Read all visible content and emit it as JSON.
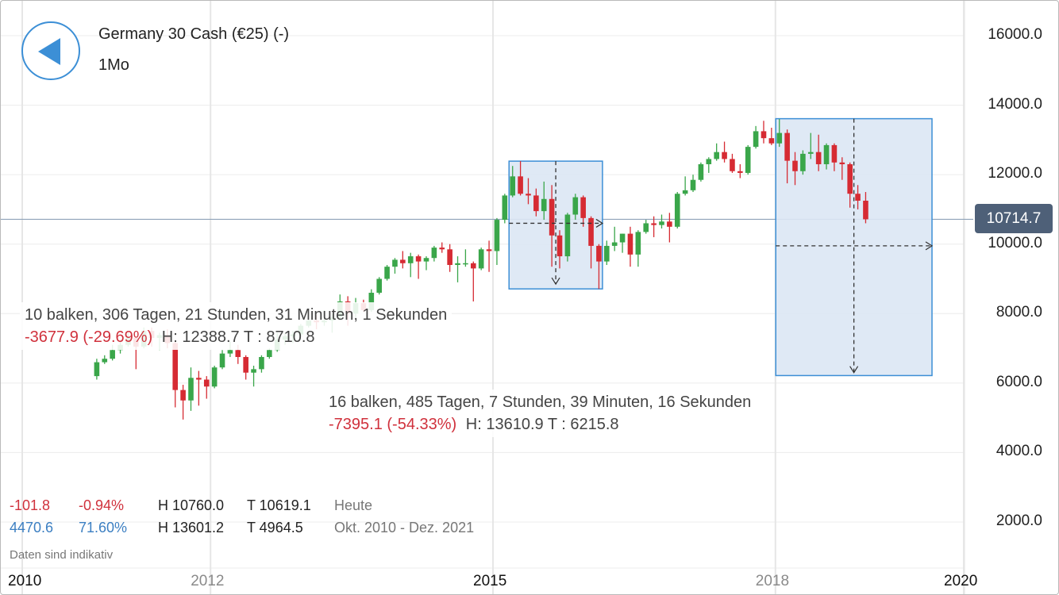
{
  "header": {
    "back_icon": "back-arrow-icon",
    "title": "Germany 30 Cash (€25) (-)",
    "interval": "1Mo"
  },
  "colors": {
    "up": "#3aa64a",
    "down": "#d62b33",
    "accent": "#3c8fd6",
    "price_box": "#4e6078",
    "selection_fill": "#dbe7f4"
  },
  "chart_data": {
    "type": "candlestick",
    "ylim": [
      1500,
      16600
    ],
    "y_ticks": [
      "16000.0",
      "14000.0",
      "12000.0",
      "10000.0",
      "8000.0",
      "6000.0",
      "4000.0",
      "2000.0"
    ],
    "x_ticks": [
      {
        "label": "2010",
        "year": 2010,
        "emphasis": true
      },
      {
        "label": "2012",
        "year": 2012,
        "emphasis": false
      },
      {
        "label": "2015",
        "year": 2015,
        "emphasis": true
      },
      {
        "label": "2018",
        "year": 2018,
        "emphasis": false
      },
      {
        "label": "2020",
        "year": 2020,
        "emphasis": true
      }
    ],
    "current_price": "10714.7",
    "current_value": 10714.7,
    "candles": [
      {
        "t": "2010-10",
        "o": 6200,
        "h": 6700,
        "l": 6100,
        "c": 6600
      },
      {
        "t": "2010-11",
        "o": 6600,
        "h": 6800,
        "l": 6550,
        "c": 6700
      },
      {
        "t": "2010-12",
        "o": 6700,
        "h": 7100,
        "l": 6650,
        "c": 6950
      },
      {
        "t": "2011-01",
        "o": 6950,
        "h": 7200,
        "l": 6850,
        "c": 7100
      },
      {
        "t": "2011-02",
        "o": 7100,
        "h": 7450,
        "l": 7050,
        "c": 7300
      },
      {
        "t": "2011-03",
        "o": 7300,
        "h": 7350,
        "l": 6400,
        "c": 7050
      },
      {
        "t": "2011-04",
        "o": 7050,
        "h": 7600,
        "l": 7000,
        "c": 7500
      },
      {
        "t": "2011-05",
        "o": 7500,
        "h": 7600,
        "l": 7050,
        "c": 7300
      },
      {
        "t": "2011-06",
        "o": 7300,
        "h": 7450,
        "l": 6950,
        "c": 7380
      },
      {
        "t": "2011-07",
        "o": 7380,
        "h": 7550,
        "l": 7000,
        "c": 7150
      },
      {
        "t": "2011-08",
        "o": 7150,
        "h": 7200,
        "l": 5300,
        "c": 5800
      },
      {
        "t": "2011-09",
        "o": 5800,
        "h": 5950,
        "l": 4950,
        "c": 5500
      },
      {
        "t": "2011-10",
        "o": 5500,
        "h": 6450,
        "l": 5200,
        "c": 6150
      },
      {
        "t": "2011-11",
        "o": 6150,
        "h": 6350,
        "l": 5350,
        "c": 6100
      },
      {
        "t": "2011-12",
        "o": 6100,
        "h": 6200,
        "l": 5550,
        "c": 5900
      },
      {
        "t": "2012-01",
        "o": 5900,
        "h": 6500,
        "l": 5850,
        "c": 6450
      },
      {
        "t": "2012-02",
        "o": 6450,
        "h": 6950,
        "l": 6400,
        "c": 6850
      },
      {
        "t": "2012-03",
        "o": 6850,
        "h": 7200,
        "l": 6750,
        "c": 6950
      },
      {
        "t": "2012-04",
        "o": 6950,
        "h": 7100,
        "l": 6550,
        "c": 6750
      },
      {
        "t": "2012-05",
        "o": 6750,
        "h": 6800,
        "l": 6100,
        "c": 6300
      },
      {
        "t": "2012-06",
        "o": 6300,
        "h": 6500,
        "l": 5900,
        "c": 6400
      },
      {
        "t": "2012-07",
        "o": 6400,
        "h": 6800,
        "l": 6300,
        "c": 6750
      },
      {
        "t": "2012-08",
        "o": 6750,
        "h": 7000,
        "l": 6700,
        "c": 6950
      },
      {
        "t": "2012-09",
        "o": 6950,
        "h": 7450,
        "l": 6900,
        "c": 7250
      },
      {
        "t": "2012-10",
        "o": 7250,
        "h": 7450,
        "l": 7100,
        "c": 7350
      },
      {
        "t": "2012-11",
        "o": 7350,
        "h": 7500,
        "l": 7150,
        "c": 7400
      },
      {
        "t": "2012-12",
        "o": 7400,
        "h": 7700,
        "l": 7350,
        "c": 7650
      },
      {
        "t": "2013-01",
        "o": 7650,
        "h": 7850,
        "l": 7600,
        "c": 7800
      },
      {
        "t": "2013-02",
        "o": 7800,
        "h": 7950,
        "l": 7550,
        "c": 7750
      },
      {
        "t": "2013-03",
        "o": 7750,
        "h": 8100,
        "l": 7650,
        "c": 7800
      },
      {
        "t": "2013-04",
        "o": 7800,
        "h": 8000,
        "l": 7450,
        "c": 7900
      },
      {
        "t": "2013-05",
        "o": 7900,
        "h": 8550,
        "l": 7850,
        "c": 8350
      },
      {
        "t": "2013-06",
        "o": 8350,
        "h": 8500,
        "l": 7650,
        "c": 8000
      },
      {
        "t": "2013-07",
        "o": 8000,
        "h": 8450,
        "l": 7900,
        "c": 8300
      },
      {
        "t": "2013-08",
        "o": 8300,
        "h": 8400,
        "l": 8050,
        "c": 8100
      },
      {
        "t": "2013-09",
        "o": 8100,
        "h": 8700,
        "l": 8050,
        "c": 8600
      },
      {
        "t": "2013-10",
        "o": 8600,
        "h": 9050,
        "l": 8550,
        "c": 9000
      },
      {
        "t": "2013-11",
        "o": 9000,
        "h": 9400,
        "l": 8950,
        "c": 9350
      },
      {
        "t": "2013-12",
        "o": 9350,
        "h": 9600,
        "l": 9150,
        "c": 9550
      },
      {
        "t": "2014-01",
        "o": 9550,
        "h": 9800,
        "l": 9300,
        "c": 9450
      },
      {
        "t": "2014-02",
        "o": 9450,
        "h": 9750,
        "l": 9050,
        "c": 9650
      },
      {
        "t": "2014-03",
        "o": 9650,
        "h": 9700,
        "l": 9000,
        "c": 9500
      },
      {
        "t": "2014-04",
        "o": 9500,
        "h": 9650,
        "l": 9250,
        "c": 9600
      },
      {
        "t": "2014-05",
        "o": 9600,
        "h": 9950,
        "l": 9500,
        "c": 9900
      },
      {
        "t": "2014-06",
        "o": 9900,
        "h": 10050,
        "l": 9750,
        "c": 9850
      },
      {
        "t": "2014-07",
        "o": 9850,
        "h": 10000,
        "l": 9200,
        "c": 9400
      },
      {
        "t": "2014-08",
        "o": 9400,
        "h": 9650,
        "l": 8900,
        "c": 9450
      },
      {
        "t": "2014-09",
        "o": 9450,
        "h": 9850,
        "l": 9350,
        "c": 9450
      },
      {
        "t": "2014-10",
        "o": 9450,
        "h": 9500,
        "l": 8350,
        "c": 9300
      },
      {
        "t": "2014-11",
        "o": 9300,
        "h": 9900,
        "l": 9250,
        "c": 9850
      },
      {
        "t": "2014-12",
        "o": 9850,
        "h": 10100,
        "l": 9200,
        "c": 9800
      },
      {
        "t": "2015-01",
        "o": 9800,
        "h": 10750,
        "l": 9400,
        "c": 10700
      },
      {
        "t": "2015-02",
        "o": 10700,
        "h": 11450,
        "l": 10600,
        "c": 11400
      },
      {
        "t": "2015-03",
        "o": 11400,
        "h": 12250,
        "l": 11350,
        "c": 11950
      },
      {
        "t": "2015-04",
        "o": 11950,
        "h": 12390,
        "l": 11400,
        "c": 11450
      },
      {
        "t": "2015-05",
        "o": 11450,
        "h": 11900,
        "l": 11150,
        "c": 11400
      },
      {
        "t": "2015-06",
        "o": 11400,
        "h": 11600,
        "l": 10800,
        "c": 10950
      },
      {
        "t": "2015-07",
        "o": 10950,
        "h": 11800,
        "l": 10700,
        "c": 11300
      },
      {
        "t": "2015-08",
        "o": 11300,
        "h": 11700,
        "l": 9350,
        "c": 10250
      },
      {
        "t": "2015-09",
        "o": 10250,
        "h": 10400,
        "l": 9300,
        "c": 9650
      },
      {
        "t": "2015-10",
        "o": 9650,
        "h": 10900,
        "l": 9500,
        "c": 10850
      },
      {
        "t": "2015-11",
        "o": 10850,
        "h": 11450,
        "l": 10700,
        "c": 11350
      },
      {
        "t": "2015-12",
        "o": 11350,
        "h": 11400,
        "l": 10500,
        "c": 10750
      },
      {
        "t": "2016-01",
        "o": 10750,
        "h": 10800,
        "l": 9300,
        "c": 9950
      },
      {
        "t": "2016-02",
        "o": 9950,
        "h": 10000,
        "l": 8710,
        "c": 9500
      },
      {
        "t": "2016-03",
        "o": 9500,
        "h": 10100,
        "l": 9400,
        "c": 9950
      },
      {
        "t": "2016-04",
        "o": 9950,
        "h": 10500,
        "l": 9800,
        "c": 10050
      },
      {
        "t": "2016-05",
        "o": 10050,
        "h": 10300,
        "l": 9750,
        "c": 10300
      },
      {
        "t": "2016-06",
        "o": 10300,
        "h": 10500,
        "l": 9350,
        "c": 9700
      },
      {
        "t": "2016-07",
        "o": 9700,
        "h": 10400,
        "l": 9350,
        "c": 10350
      },
      {
        "t": "2016-08",
        "o": 10350,
        "h": 10700,
        "l": 10300,
        "c": 10600
      },
      {
        "t": "2016-09",
        "o": 10600,
        "h": 10800,
        "l": 10200,
        "c": 10550
      },
      {
        "t": "2016-10",
        "o": 10550,
        "h": 10850,
        "l": 10450,
        "c": 10650
      },
      {
        "t": "2016-11",
        "o": 10650,
        "h": 10900,
        "l": 10050,
        "c": 10500
      },
      {
        "t": "2016-12",
        "o": 10500,
        "h": 11500,
        "l": 10450,
        "c": 11450
      },
      {
        "t": "2017-01",
        "o": 11450,
        "h": 11950,
        "l": 11400,
        "c": 11550
      },
      {
        "t": "2017-02",
        "o": 11550,
        "h": 12000,
        "l": 11500,
        "c": 11850
      },
      {
        "t": "2017-03",
        "o": 11850,
        "h": 12350,
        "l": 11800,
        "c": 12300
      },
      {
        "t": "2017-04",
        "o": 12300,
        "h": 12500,
        "l": 12050,
        "c": 12450
      },
      {
        "t": "2017-05",
        "o": 12450,
        "h": 12900,
        "l": 12400,
        "c": 12650
      },
      {
        "t": "2017-06",
        "o": 12650,
        "h": 12950,
        "l": 12350,
        "c": 12450
      },
      {
        "t": "2017-07",
        "o": 12450,
        "h": 12600,
        "l": 12050,
        "c": 12100
      },
      {
        "t": "2017-08",
        "o": 12100,
        "h": 12300,
        "l": 11900,
        "c": 12050
      },
      {
        "t": "2017-09",
        "o": 12050,
        "h": 12850,
        "l": 12000,
        "c": 12800
      },
      {
        "t": "2017-10",
        "o": 12800,
        "h": 13400,
        "l": 12750,
        "c": 13250
      },
      {
        "t": "2017-11",
        "o": 13250,
        "h": 13550,
        "l": 12900,
        "c": 13050
      },
      {
        "t": "2017-12",
        "o": 13050,
        "h": 13350,
        "l": 12850,
        "c": 12900
      },
      {
        "t": "2018-01",
        "o": 12900,
        "h": 13601,
        "l": 12800,
        "c": 13200
      },
      {
        "t": "2018-02",
        "o": 13200,
        "h": 13300,
        "l": 11750,
        "c": 12400
      },
      {
        "t": "2018-03",
        "o": 12400,
        "h": 12650,
        "l": 11700,
        "c": 12100
      },
      {
        "t": "2018-04",
        "o": 12100,
        "h": 12700,
        "l": 12000,
        "c": 12600
      },
      {
        "t": "2018-05",
        "o": 12600,
        "h": 13200,
        "l": 12450,
        "c": 12650
      },
      {
        "t": "2018-06",
        "o": 12650,
        "h": 13150,
        "l": 12100,
        "c": 12300
      },
      {
        "t": "2018-07",
        "o": 12300,
        "h": 12900,
        "l": 12150,
        "c": 12850
      },
      {
        "t": "2018-08",
        "o": 12850,
        "h": 12900,
        "l": 12100,
        "c": 12350
      },
      {
        "t": "2018-09",
        "o": 12350,
        "h": 12500,
        "l": 11850,
        "c": 12300
      },
      {
        "t": "2018-10",
        "o": 12300,
        "h": 12350,
        "l": 11050,
        "c": 11450
      },
      {
        "t": "2018-11",
        "o": 11450,
        "h": 11700,
        "l": 11000,
        "c": 11250
      },
      {
        "t": "2018-12",
        "o": 11250,
        "h": 11500,
        "l": 10600,
        "c": 10714.7
      }
    ],
    "measurements": [
      {
        "from_index": 53,
        "to_index": 64,
        "y_top": 12388.7,
        "y_bottom": 8710.8,
        "h_value": 10600,
        "v_tip_value": 8850,
        "arrow_dir": "down"
      },
      {
        "from_index": 87,
        "to_index": 106,
        "y_top": 13610.9,
        "y_bottom": 6215.8,
        "h_value": 9950,
        "v_tip_value": 6300,
        "arrow_dir": "down"
      }
    ]
  },
  "measure_labels": [
    {
      "line1": "10 balken, 306 Tagen, 21 Stunden, 31 Minuten, 1 Sekunden",
      "change": "-3677.9 (-29.69%)",
      "hl": "H: 12388.7 T : 8710.8"
    },
    {
      "line1": "16 balken, 485 Tagen, 7 Stunden, 39 Minuten, 16 Sekunden",
      "change": "-7395.1 (-54.33%)",
      "hl": "H: 13610.9 T : 6215.8"
    }
  ],
  "stats": {
    "today": {
      "change": "-101.8",
      "pct": "-0.94%",
      "high": "H 10760.0",
      "low": "T 10619.1",
      "period": "Heute"
    },
    "range": {
      "change": "4470.6",
      "pct": "71.60%",
      "high": "H 13601.2",
      "low": "T 4964.5",
      "period": "Okt. 2010 - Dez. 2021"
    }
  },
  "disclaimer": "Daten sind indikativ"
}
